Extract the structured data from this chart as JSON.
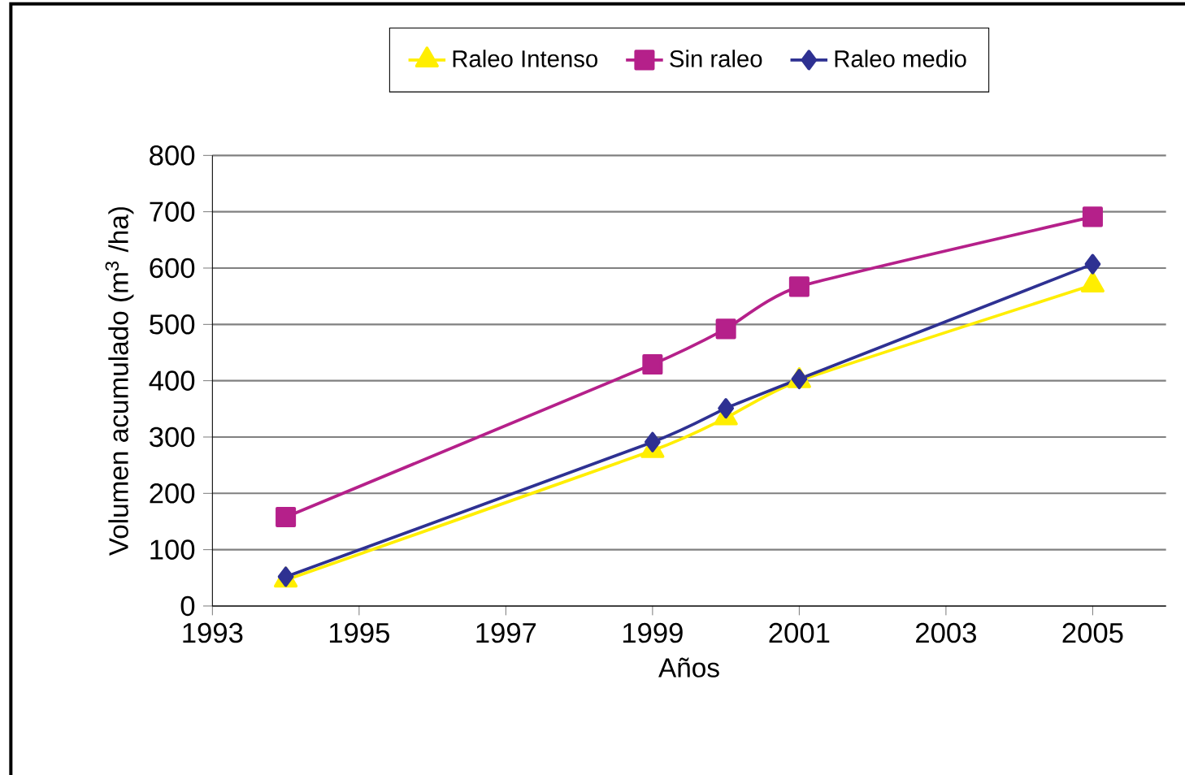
{
  "chart_data": {
    "type": "line",
    "xlabel": "Años",
    "ylabel": "Volumen acumulado (m$^{3}$ /ha)",
    "x": [
      1994,
      1999,
      2000,
      2001,
      2005
    ],
    "series": [
      {
        "name": "Raleo Intenso",
        "color": "#ffee00",
        "marker": "triangle",
        "values": [
          46,
          276,
          334,
          400,
          570
        ]
      },
      {
        "name": "Sin raleo",
        "color": "#b5208a",
        "marker": "square",
        "values": [
          158,
          429,
          492,
          567,
          691
        ]
      },
      {
        "name": "Raleo medio",
        "color": "#2e3192",
        "marker": "diamond",
        "values": [
          52,
          291,
          351,
          403,
          607
        ]
      }
    ],
    "xlim": [
      1993,
      2006
    ],
    "xticks": [
      1993,
      1995,
      1997,
      1999,
      2001,
      2003,
      2005
    ],
    "ylim": [
      0,
      800
    ],
    "yticks": [
      0,
      100,
      200,
      300,
      400,
      500,
      600,
      700,
      800
    ],
    "grid": "y",
    "legend": "top",
    "line_style": "solid"
  }
}
